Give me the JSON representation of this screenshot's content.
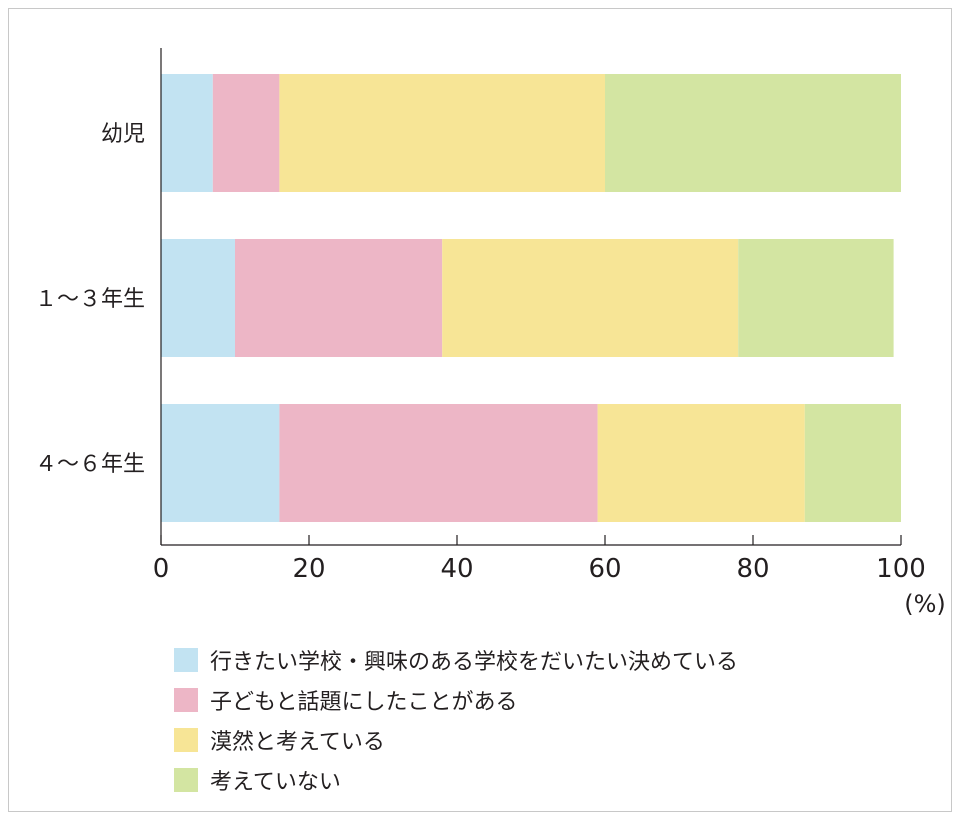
{
  "colors": {
    "axis": "#231f20",
    "series": [
      "#c2e3f2",
      "#edb6c6",
      "#f7e596",
      "#d3e5a2"
    ]
  },
  "chart_data": {
    "type": "bar",
    "orientation": "horizontal",
    "stacked": true,
    "categories": [
      "幼児",
      "１～３年生",
      "４～６年生"
    ],
    "series": [
      {
        "name": "行きたい学校・興味のある学校をだいたい決めている",
        "values": [
          7,
          10,
          16
        ]
      },
      {
        "name": "子どもと話題にしたことがある",
        "values": [
          9,
          28,
          43
        ]
      },
      {
        "name": "漠然と考えている",
        "values": [
          44,
          40,
          28
        ]
      },
      {
        "name": "考えていない",
        "values": [
          40,
          21,
          13
        ]
      }
    ],
    "xlim": [
      0,
      100
    ],
    "xticks": [
      "0",
      "20",
      "40",
      "60",
      "80",
      "100"
    ],
    "xunit": "(%)",
    "grid": false,
    "legend_position": "bottom-left"
  }
}
